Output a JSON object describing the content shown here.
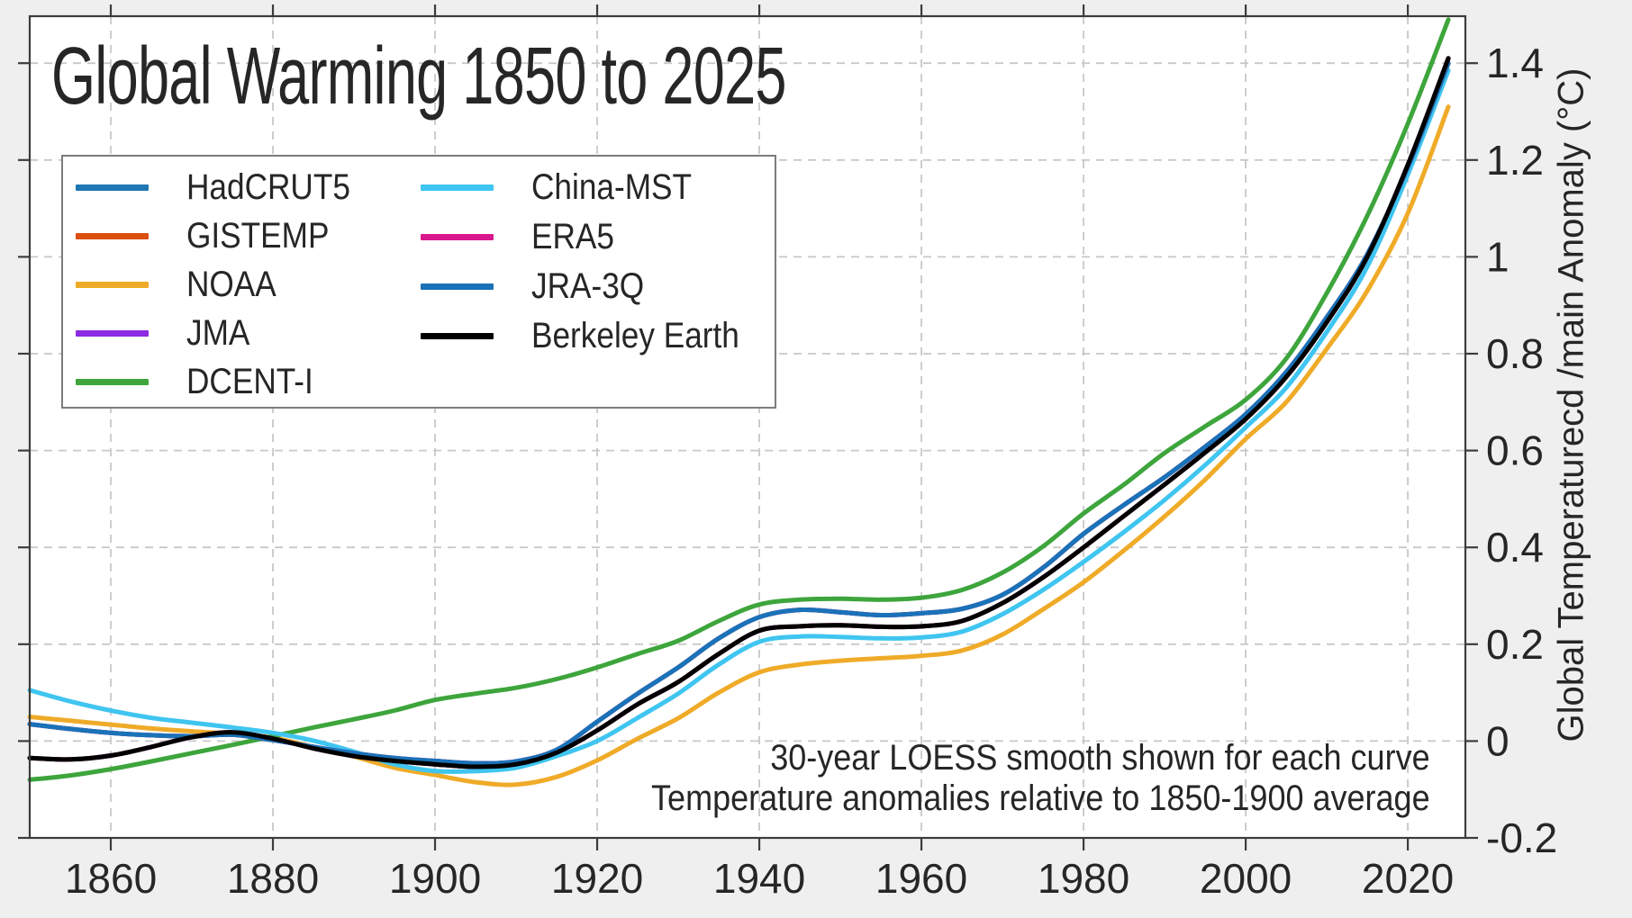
{
  "chart": {
    "title": "Global Warming 1850 to 2025",
    "background_color": "#efefef",
    "plot_background": "#ffffff",
    "grid_color": "#c8c8c8",
    "spine_color": "#3c3c3c",
    "text_color": "#262626"
  },
  "axes": {
    "y_label": "Global Temperaturecd /main Anomaly (°C)",
    "x_tick_labels": [
      "1860",
      "1880",
      "1900",
      "1920",
      "1940",
      "1960",
      "1980",
      "2000",
      "2020"
    ],
    "x_tick_years": [
      1860,
      1880,
      1900,
      1920,
      1940,
      1960,
      1980,
      2000,
      2020
    ],
    "y_tick_labels": [
      "-0.2",
      "0",
      "0.2",
      "0.4",
      "0.6",
      "0.8",
      "1",
      "1.2",
      "1.4"
    ],
    "y_tick_values": [
      -0.2,
      0,
      0.2,
      0.4,
      0.6,
      0.8,
      1,
      1.2,
      1.4
    ]
  },
  "annotation": {
    "line1": "30-year LOESS smooth shown for each curve",
    "line2": "Temperature anomalies relative to 1850-1900 average"
  },
  "legend": {
    "items": [
      {
        "label": "HadCRUT5",
        "color": "#1f77b4",
        "column": 1
      },
      {
        "label": "GISTEMP",
        "color": "#db4f0b",
        "column": 1
      },
      {
        "label": "NOAA",
        "color": "#efab28",
        "column": 1
      },
      {
        "label": "JMA",
        "color": "#8c2be0",
        "column": 1
      },
      {
        "label": "DCENT-I",
        "color": "#3da53c",
        "column": 1
      },
      {
        "label": "China-MST",
        "color": "#3fc5f0",
        "column": 2
      },
      {
        "label": "ERA5",
        "color": "#d8188c",
        "column": 2
      },
      {
        "label": "JRA-3Q",
        "color": "#1a72b8",
        "column": 2
      },
      {
        "label": "Berkeley Earth",
        "color": "#000000",
        "column": 2
      }
    ]
  },
  "chart_data": {
    "type": "line",
    "title": "Global Warming 1850 to 2025",
    "xlabel": "",
    "ylabel": "Global Temperaturecd /main Anomaly (°C)",
    "xlim": [
      1850,
      2027
    ],
    "ylim": [
      -0.2,
      1.5
    ],
    "grid": true,
    "grid_style": "dashed",
    "legend_position": "upper-left",
    "annotations": [
      "30-year LOESS smooth shown for each curve",
      "Temperature anomalies relative to 1850-1900 average"
    ],
    "x": [
      1850,
      1855,
      1860,
      1865,
      1870,
      1875,
      1880,
      1885,
      1890,
      1895,
      1900,
      1905,
      1910,
      1915,
      1920,
      1925,
      1930,
      1935,
      1940,
      1945,
      1950,
      1955,
      1960,
      1965,
      1970,
      1975,
      1980,
      1985,
      1990,
      1995,
      2000,
      2005,
      2010,
      2015,
      2020,
      2025
    ],
    "series": [
      {
        "name": "HadCRUT5",
        "color": "#1f77b4",
        "linewidth": 5,
        "values": [
          0.035,
          0.025,
          0.017,
          0.012,
          0.01,
          0.013,
          0.002,
          -0.012,
          -0.025,
          -0.035,
          -0.041,
          -0.046,
          -0.042,
          -0.018,
          0.04,
          0.098,
          0.152,
          0.212,
          0.256,
          0.271,
          0.266,
          0.26,
          0.264,
          0.273,
          0.302,
          0.358,
          0.428,
          0.488,
          0.545,
          0.608,
          0.675,
          0.762,
          0.875,
          1.005,
          1.185,
          1.4
        ]
      },
      {
        "name": "GISTEMP",
        "color": "#db4f0b",
        "linewidth": 5,
        "note": "coincides with Berkeley Earth curve (hidden beneath it)",
        "values_same_as": "Berkeley Earth"
      },
      {
        "name": "NOAA",
        "color": "#efab28",
        "linewidth": 5,
        "values": [
          0.05,
          0.042,
          0.034,
          0.026,
          0.02,
          0.015,
          0.007,
          -0.012,
          -0.032,
          -0.055,
          -0.07,
          -0.085,
          -0.09,
          -0.074,
          -0.04,
          0.005,
          0.047,
          0.1,
          0.142,
          0.158,
          0.166,
          0.171,
          0.176,
          0.187,
          0.22,
          0.272,
          0.328,
          0.394,
          0.464,
          0.54,
          0.624,
          0.7,
          0.81,
          0.93,
          1.09,
          1.31
        ]
      },
      {
        "name": "JMA",
        "color": "#8c2be0",
        "linewidth": 5,
        "note": "coincides with Berkeley Earth curve (hidden beneath it)",
        "values_same_as": "Berkeley Earth"
      },
      {
        "name": "DCENT-I",
        "color": "#3da53c",
        "linewidth": 5,
        "values": [
          -0.08,
          -0.071,
          -0.058,
          -0.042,
          -0.025,
          -0.008,
          0.01,
          0.028,
          0.045,
          0.063,
          0.085,
          0.098,
          0.11,
          0.128,
          0.152,
          0.18,
          0.207,
          0.248,
          0.282,
          0.292,
          0.294,
          0.292,
          0.296,
          0.312,
          0.348,
          0.402,
          0.47,
          0.53,
          0.595,
          0.65,
          0.705,
          0.79,
          0.925,
          1.085,
          1.275,
          1.49
        ]
      },
      {
        "name": "China-MST",
        "color": "#3fc5f0",
        "linewidth": 5,
        "values": [
          0.105,
          0.082,
          0.063,
          0.048,
          0.038,
          0.028,
          0.017,
          0.001,
          -0.022,
          -0.048,
          -0.062,
          -0.062,
          -0.055,
          -0.031,
          0.0,
          0.048,
          0.098,
          0.158,
          0.205,
          0.216,
          0.215,
          0.212,
          0.214,
          0.226,
          0.262,
          0.312,
          0.37,
          0.432,
          0.498,
          0.57,
          0.648,
          0.73,
          0.845,
          0.98,
          1.17,
          1.385
        ]
      },
      {
        "name": "ERA5",
        "color": "#d8188c",
        "linewidth": 5,
        "note": "coincides with HadCRUT5 curve (hidden beneath it)",
        "values_same_as": "HadCRUT5"
      },
      {
        "name": "JRA-3Q",
        "color": "#1a72b8",
        "linewidth": 5,
        "note": "coincides with HadCRUT5 curve",
        "values_same_as": "HadCRUT5"
      },
      {
        "name": "Berkeley Earth",
        "color": "#000000",
        "linewidth": 5,
        "values": [
          -0.035,
          -0.038,
          -0.03,
          -0.012,
          0.008,
          0.018,
          0.005,
          -0.015,
          -0.031,
          -0.041,
          -0.048,
          -0.053,
          -0.048,
          -0.024,
          0.022,
          0.076,
          0.122,
          0.18,
          0.228,
          0.237,
          0.239,
          0.236,
          0.237,
          0.248,
          0.285,
          0.338,
          0.4,
          0.465,
          0.53,
          0.596,
          0.665,
          0.752,
          0.865,
          1.0,
          1.19,
          1.41
        ]
      }
    ]
  }
}
